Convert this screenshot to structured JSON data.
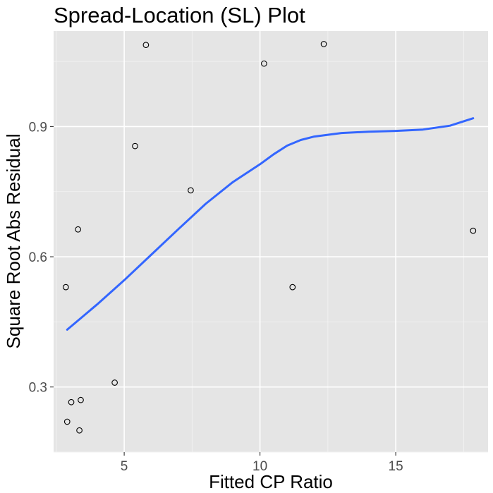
{
  "chart_data": {
    "type": "scatter",
    "title": "Spread-Location (SL) Plot",
    "xlabel": "Fitted CP Ratio",
    "ylabel": "Square Root Abs Residual",
    "xlim": [
      2.4,
      18.4
    ],
    "ylim": [
      0.15,
      1.12
    ],
    "x_ticks": [
      5,
      10,
      15
    ],
    "x_tick_labels": [
      "5",
      "10",
      "15"
    ],
    "x_minor": [
      2.5,
      7.5,
      12.5,
      17.5
    ],
    "y_ticks": [
      0.3,
      0.6,
      0.9
    ],
    "y_tick_labels": [
      "0.3",
      "0.6",
      "0.9"
    ],
    "y_minor": [
      0.15,
      0.45,
      0.75,
      1.05
    ],
    "grid": true,
    "points": [
      {
        "x": 2.85,
        "y": 0.53
      },
      {
        "x": 2.9,
        "y": 0.22
      },
      {
        "x": 3.05,
        "y": 0.265
      },
      {
        "x": 3.3,
        "y": 0.663
      },
      {
        "x": 3.35,
        "y": 0.2
      },
      {
        "x": 3.4,
        "y": 0.27
      },
      {
        "x": 4.65,
        "y": 0.31
      },
      {
        "x": 5.4,
        "y": 0.855
      },
      {
        "x": 5.8,
        "y": 1.088
      },
      {
        "x": 7.45,
        "y": 0.753
      },
      {
        "x": 10.15,
        "y": 1.045
      },
      {
        "x": 11.2,
        "y": 0.53
      },
      {
        "x": 12.35,
        "y": 1.09
      },
      {
        "x": 17.85,
        "y": 0.66
      }
    ],
    "smooth": {
      "color": "#3366ff",
      "x": [
        2.9,
        4.0,
        5.0,
        6.0,
        7.0,
        8.0,
        9.0,
        10.0,
        10.5,
        11.0,
        11.5,
        12.0,
        13.0,
        14.0,
        15.0,
        16.0,
        17.0,
        17.85
      ],
      "y": [
        0.432,
        0.49,
        0.546,
        0.605,
        0.664,
        0.722,
        0.772,
        0.813,
        0.836,
        0.856,
        0.869,
        0.877,
        0.885,
        0.888,
        0.89,
        0.893,
        0.902,
        0.919
      ]
    }
  }
}
